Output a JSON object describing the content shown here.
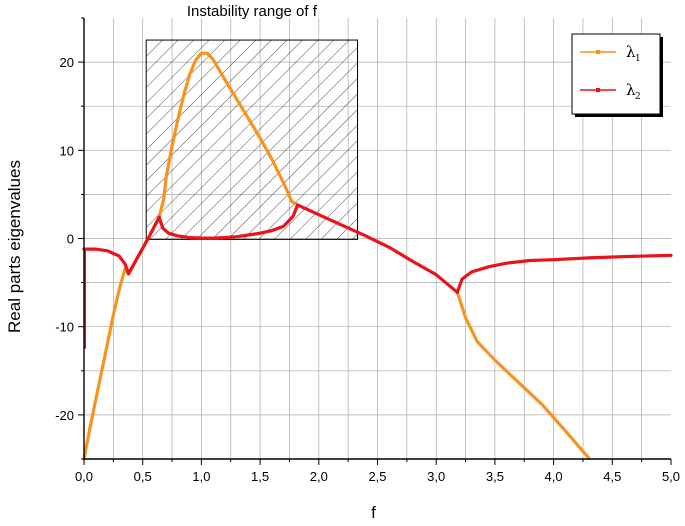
{
  "chart_data": {
    "type": "line",
    "title": "",
    "xlabel": "f",
    "ylabel": "Real parts eigenvalues",
    "xlim": [
      0,
      5
    ],
    "ylim": [
      -25,
      25
    ],
    "x_ticks": [
      "0,0",
      "0,5",
      "1,0",
      "1,5",
      "2,0",
      "2,5",
      "3,0",
      "3,5",
      "4,0",
      "4,5",
      "5,0"
    ],
    "y_ticks": [
      "-20",
      "-10",
      "0",
      "10",
      "20"
    ],
    "grid": true,
    "legend_position": "top-right",
    "annotation": {
      "label": "Instability range of f",
      "x_range": [
        0.53,
        2.33
      ],
      "y_range": [
        -0.1,
        22.5
      ]
    },
    "series": [
      {
        "name": "λ1",
        "legend_base": "λ",
        "legend_sub": "1",
        "color": "#f7931e",
        "segments": [
          [
            [
              0.0,
              -25
            ],
            [
              0.05,
              -21.5
            ],
            [
              0.1,
              -18.3
            ],
            [
              0.15,
              -15.1
            ],
            [
              0.2,
              -11.9
            ],
            [
              0.25,
              -8.7
            ],
            [
              0.3,
              -5.8
            ],
            [
              0.35,
              -3.4
            ],
            [
              0.38,
              -4.0
            ]
          ],
          [
            [
              0.38,
              -4.0
            ],
            [
              0.45,
              -2.3
            ],
            [
              0.55,
              0.1
            ],
            [
              0.64,
              2.4
            ],
            [
              0.68,
              4.5
            ],
            [
              0.7,
              7.0
            ],
            [
              0.75,
              10.5
            ],
            [
              0.8,
              13.5
            ],
            [
              0.85,
              16.3
            ],
            [
              0.9,
              18.6
            ],
            [
              0.95,
              20.2
            ],
            [
              1.0,
              21.0
            ],
            [
              1.05,
              21.0
            ],
            [
              1.1,
              20.3
            ],
            [
              1.2,
              18.0
            ],
            [
              1.3,
              15.8
            ],
            [
              1.4,
              13.6
            ],
            [
              1.5,
              11.4
            ],
            [
              1.6,
              9.0
            ],
            [
              1.7,
              6.3
            ],
            [
              1.77,
              4.2
            ],
            [
              1.82,
              3.8
            ]
          ],
          [
            [
              3.18,
              -6.1
            ],
            [
              3.25,
              -9.0
            ],
            [
              3.35,
              -11.7
            ],
            [
              3.5,
              -13.8
            ],
            [
              3.7,
              -16.3
            ],
            [
              3.9,
              -18.8
            ],
            [
              4.1,
              -21.8
            ],
            [
              4.3,
              -24.9
            ]
          ]
        ]
      },
      {
        "name": "λ2",
        "legend_base": "λ",
        "legend_sub": "2",
        "color": "#e8141a",
        "segments": [
          [
            [
              0.0,
              -1.2
            ],
            [
              0.1,
              -1.2
            ],
            [
              0.2,
              -1.4
            ],
            [
              0.3,
              -2.0
            ],
            [
              0.35,
              -2.9
            ],
            [
              0.38,
              -4.0
            ]
          ],
          [
            [
              0.38,
              -4.0
            ],
            [
              0.45,
              -2.3
            ],
            [
              0.55,
              0.1
            ],
            [
              0.64,
              2.4
            ]
          ],
          [
            [
              0.64,
              2.4
            ],
            [
              0.67,
              1.2
            ],
            [
              0.72,
              0.6
            ],
            [
              0.8,
              0.3
            ],
            [
              0.9,
              0.1
            ],
            [
              1.0,
              0.05
            ],
            [
              1.1,
              0.05
            ],
            [
              1.2,
              0.1
            ],
            [
              1.3,
              0.2
            ],
            [
              1.4,
              0.4
            ],
            [
              1.5,
              0.6
            ],
            [
              1.6,
              0.9
            ],
            [
              1.7,
              1.4
            ],
            [
              1.78,
              2.5
            ],
            [
              1.82,
              3.8
            ]
          ],
          [
            [
              1.82,
              3.8
            ],
            [
              2.0,
              2.7
            ],
            [
              2.2,
              1.5
            ],
            [
              2.4,
              0.3
            ],
            [
              2.6,
              -1.0
            ],
            [
              2.8,
              -2.6
            ],
            [
              3.0,
              -4.1
            ],
            [
              3.18,
              -6.1
            ]
          ],
          [
            [
              3.18,
              -6.1
            ],
            [
              3.22,
              -4.6
            ],
            [
              3.3,
              -3.8
            ],
            [
              3.45,
              -3.2
            ],
            [
              3.6,
              -2.8
            ],
            [
              3.8,
              -2.5
            ],
            [
              4.0,
              -2.4
            ],
            [
              4.3,
              -2.2
            ],
            [
              4.6,
              -2.05
            ],
            [
              5.0,
              -1.9
            ]
          ]
        ]
      }
    ]
  }
}
